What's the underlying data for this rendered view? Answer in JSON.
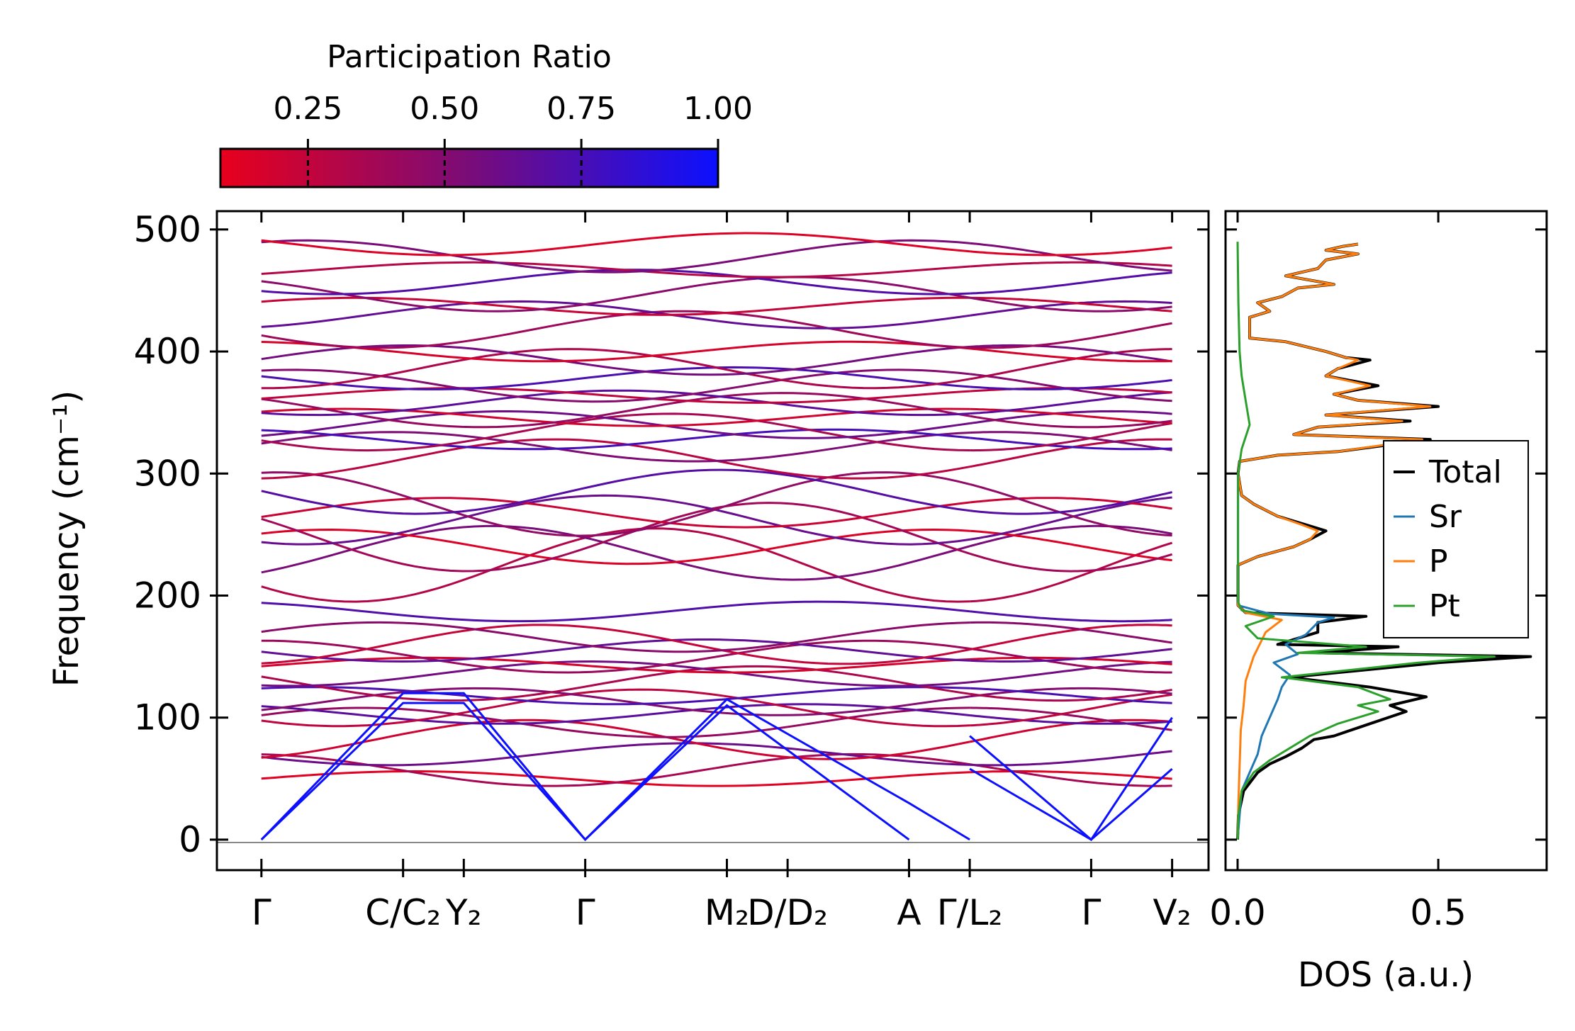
{
  "chart_data": [
    {
      "type": "line",
      "title": "",
      "xlabel": "",
      "ylabel": "Frequency (cm⁻¹)",
      "ylim": [
        -25,
        515
      ],
      "yticks": [
        0,
        100,
        200,
        300,
        400,
        500
      ],
      "ytick_labels": [
        "0",
        "100",
        "200",
        "300",
        "400",
        "500"
      ],
      "kpath": [
        {
          "label": "Γ",
          "pos": 0.0
        },
        {
          "label": "C/C₂",
          "pos": 0.7
        },
        {
          "label": "Y₂",
          "pos": 1.0
        },
        {
          "label": "Γ",
          "pos": 1.6
        },
        {
          "label": "M₂",
          "pos": 2.3
        },
        {
          "label": "D/D₂",
          "pos": 2.6
        },
        {
          "label": "A",
          "pos": 3.2
        },
        {
          "label": "Γ/L₂",
          "pos": 3.5
        },
        {
          "label": "Γ",
          "pos": 4.1
        },
        {
          "label": "V₂",
          "pos": 4.5
        }
      ],
      "xlim": [
        -0.22,
        4.68
      ],
      "segments": [
        [
          0.0,
          3.5
        ],
        [
          3.5,
          4.5
        ]
      ],
      "acoustic_branches": {
        "seg1_a": [
          [
            0,
            0
          ],
          [
            0.7,
            112
          ],
          [
            1.0,
            112
          ],
          [
            1.6,
            0
          ],
          [
            2.3,
            110
          ],
          [
            3.2,
            0
          ]
        ],
        "seg1_b": [
          [
            0,
            0
          ],
          [
            0.7,
            120
          ],
          [
            1.0,
            120
          ],
          [
            1.6,
            0
          ],
          [
            2.3,
            115
          ],
          [
            3.2,
            30
          ],
          [
            3.5,
            0
          ]
        ],
        "seg2_a": [
          [
            3.5,
            58
          ],
          [
            4.1,
            0
          ],
          [
            4.5,
            58
          ]
        ],
        "seg2_b": [
          [
            3.5,
            85
          ],
          [
            4.1,
            0
          ],
          [
            4.5,
            100
          ]
        ]
      },
      "optical_bands_approx": [
        50,
        57,
        70,
        82,
        96,
        103,
        108,
        113,
        118,
        128,
        136,
        143,
        150,
        155,
        160,
        166,
        187,
        225,
        235,
        240,
        248,
        262,
        268,
        275,
        285,
        312,
        322,
        328,
        334,
        340,
        346,
        352,
        358,
        364,
        372,
        378,
        386,
        393,
        400,
        418,
        430,
        437,
        447,
        457,
        467,
        478,
        488
      ]
    },
    {
      "type": "line",
      "title": "",
      "xlabel": "DOS (a.u.)",
      "ylabel": "",
      "xlim": [
        -0.03,
        0.77
      ],
      "xticks": [
        0.0,
        0.5
      ],
      "xtick_labels": [
        "0.0",
        "0.5"
      ],
      "series": [
        {
          "name": "Total",
          "color": "#000000",
          "points": [
            [
              0,
              0
            ],
            [
              0.002,
              20
            ],
            [
              0.015,
              40
            ],
            [
              0.05,
              55
            ],
            [
              0.08,
              62
            ],
            [
              0.12,
              68
            ],
            [
              0.16,
              75
            ],
            [
              0.19,
              82
            ],
            [
              0.24,
              85
            ],
            [
              0.33,
              95
            ],
            [
              0.42,
              105
            ],
            [
              0.38,
              110
            ],
            [
              0.47,
              117
            ],
            [
              0.33,
              125
            ],
            [
              0.13,
              133
            ],
            [
              0.5,
              145
            ],
            [
              0.73,
              150
            ],
            [
              0.2,
              153
            ],
            [
              0.4,
              158
            ],
            [
              0.1,
              160
            ],
            [
              0.2,
              170
            ],
            [
              0.2,
              178
            ],
            [
              0.32,
              183
            ],
            [
              0.02,
              186
            ],
            [
              0.001,
              192
            ],
            [
              0.001,
              225
            ],
            [
              0.05,
              232
            ],
            [
              0.14,
              240
            ],
            [
              0.18,
              246
            ],
            [
              0.22,
              253
            ],
            [
              0.17,
              258
            ],
            [
              0.1,
              265
            ],
            [
              0.04,
              275
            ],
            [
              0.01,
              282
            ],
            [
              0.001,
              300
            ],
            [
              0.005,
              310
            ],
            [
              0.1,
              315
            ],
            [
              0.25,
              318
            ],
            [
              0.48,
              328
            ],
            [
              0.14,
              332
            ],
            [
              0.2,
              338
            ],
            [
              0.43,
              343
            ],
            [
              0.22,
              348
            ],
            [
              0.5,
              355
            ],
            [
              0.3,
              360
            ],
            [
              0.24,
              365
            ],
            [
              0.35,
              372
            ],
            [
              0.22,
              380
            ],
            [
              0.25,
              386
            ],
            [
              0.33,
              393
            ],
            [
              0.27,
              395
            ],
            [
              0.22,
              400
            ],
            [
              0.12,
              408
            ],
            [
              0.03,
              411
            ],
            [
              0.03,
              428
            ],
            [
              0.08,
              433
            ],
            [
              0.05,
              440
            ],
            [
              0.11,
              445
            ],
            [
              0.15,
              452
            ],
            [
              0.24,
              455
            ],
            [
              0.12,
              462
            ],
            [
              0.2,
              468
            ],
            [
              0.22,
              475
            ],
            [
              0.3,
              480
            ],
            [
              0.22,
              483
            ],
            [
              0.26,
              486
            ],
            [
              0.3,
              488
            ]
          ]
        },
        {
          "name": "Sr",
          "color": "#1f77b4",
          "points": [
            [
              0,
              0
            ],
            [
              0.005,
              20
            ],
            [
              0.01,
              40
            ],
            [
              0.03,
              55
            ],
            [
              0.05,
              70
            ],
            [
              0.06,
              85
            ],
            [
              0.08,
              100
            ],
            [
              0.1,
              115
            ],
            [
              0.11,
              125
            ],
            [
              0.13,
              135
            ],
            [
              0.09,
              145
            ],
            [
              0.15,
              152
            ],
            [
              0.12,
              160
            ],
            [
              0.17,
              168
            ],
            [
              0.2,
              178
            ],
            [
              0.24,
              182
            ],
            [
              0.08,
              185
            ],
            [
              0.001,
              192
            ],
            [
              0.001,
              300
            ]
          ]
        },
        {
          "name": "P",
          "color": "#ff7f0e",
          "points": [
            [
              0,
              0
            ],
            [
              0.002,
              30
            ],
            [
              0.005,
              60
            ],
            [
              0.008,
              90
            ],
            [
              0.015,
              110
            ],
            [
              0.02,
              130
            ],
            [
              0.04,
              150
            ],
            [
              0.07,
              170
            ],
            [
              0.11,
              180
            ],
            [
              0.02,
              186
            ],
            [
              0.001,
              192
            ],
            [
              0.001,
              225
            ],
            [
              0.05,
              232
            ],
            [
              0.14,
              240
            ],
            [
              0.18,
              246
            ],
            [
              0.2,
              253
            ],
            [
              0.16,
              258
            ],
            [
              0.1,
              265
            ],
            [
              0.04,
              275
            ],
            [
              0.01,
              282
            ],
            [
              0.001,
              300
            ],
            [
              0.005,
              310
            ],
            [
              0.1,
              315
            ],
            [
              0.25,
              318
            ],
            [
              0.46,
              328
            ],
            [
              0.14,
              332
            ],
            [
              0.2,
              338
            ],
            [
              0.41,
              343
            ],
            [
              0.22,
              348
            ],
            [
              0.48,
              355
            ],
            [
              0.3,
              360
            ],
            [
              0.24,
              365
            ],
            [
              0.33,
              372
            ],
            [
              0.22,
              380
            ],
            [
              0.25,
              386
            ],
            [
              0.3,
              393
            ],
            [
              0.27,
              395
            ],
            [
              0.22,
              400
            ],
            [
              0.12,
              408
            ],
            [
              0.03,
              411
            ],
            [
              0.03,
              428
            ],
            [
              0.08,
              433
            ],
            [
              0.05,
              440
            ],
            [
              0.11,
              445
            ],
            [
              0.15,
              452
            ],
            [
              0.24,
              455
            ],
            [
              0.12,
              462
            ],
            [
              0.2,
              468
            ],
            [
              0.22,
              475
            ],
            [
              0.3,
              480
            ],
            [
              0.22,
              483
            ],
            [
              0.26,
              486
            ],
            [
              0.3,
              488
            ]
          ]
        },
        {
          "name": "Pt",
          "color": "#2ca02c",
          "points": [
            [
              0,
              0
            ],
            [
              0.002,
              20
            ],
            [
              0.01,
              40
            ],
            [
              0.04,
              55
            ],
            [
              0.08,
              65
            ],
            [
              0.13,
              75
            ],
            [
              0.18,
              85
            ],
            [
              0.25,
              95
            ],
            [
              0.35,
              105
            ],
            [
              0.3,
              110
            ],
            [
              0.38,
              115
            ],
            [
              0.3,
              125
            ],
            [
              0.11,
              133
            ],
            [
              0.45,
              145
            ],
            [
              0.64,
              150
            ],
            [
              0.15,
              153
            ],
            [
              0.32,
              158
            ],
            [
              0.05,
              165
            ],
            [
              0.02,
              175
            ],
            [
              0.09,
              183
            ],
            [
              0.01,
              188
            ],
            [
              0.001,
              195
            ],
            [
              0.001,
              300
            ],
            [
              0.01,
              320
            ],
            [
              0.03,
              340
            ],
            [
              0.02,
              360
            ],
            [
              0.01,
              380
            ],
            [
              0.005,
              400
            ],
            [
              0.002,
              440
            ],
            [
              0.0,
              490
            ]
          ]
        }
      ],
      "legend": {
        "entries": [
          "Total",
          "Sr",
          "P",
          "Pt"
        ],
        "placement": "center-right"
      }
    }
  ],
  "colorbar": {
    "label": "Participation Ratio",
    "ticks": [
      0.25,
      0.5,
      0.75,
      1.0
    ],
    "tick_labels": [
      "0.25",
      "0.50",
      "0.75",
      "1.00"
    ],
    "range": [
      0.09,
      1.0
    ],
    "color_low": "#e8001c",
    "color_mid": "#7a0c78",
    "color_high": "#0c10ff"
  }
}
